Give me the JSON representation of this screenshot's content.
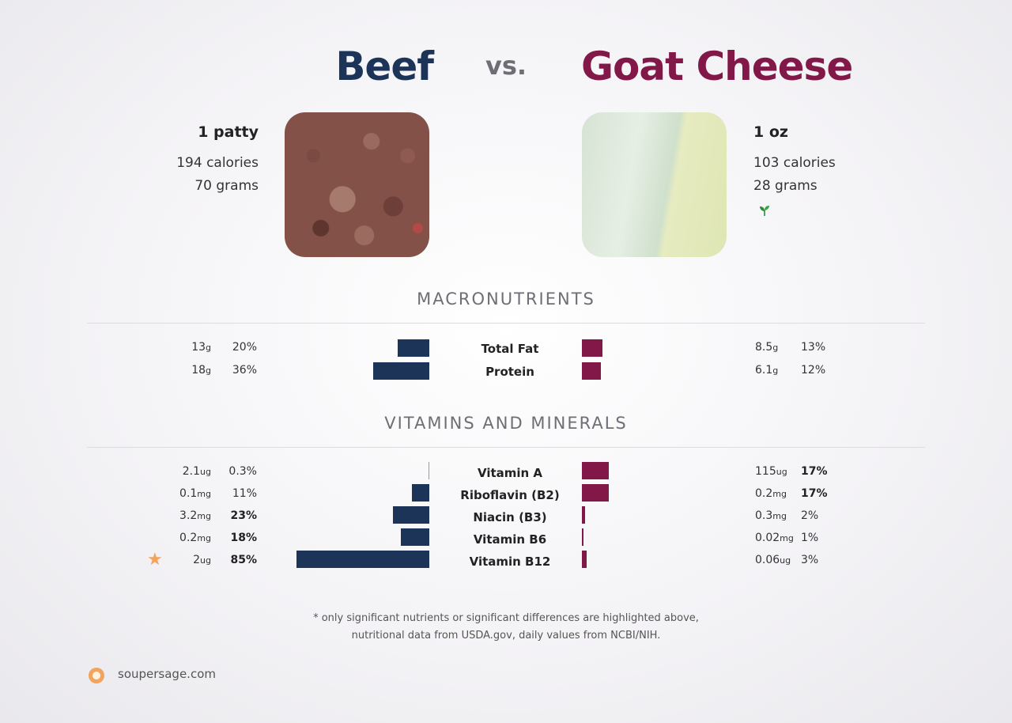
{
  "titles": {
    "left": "Beef",
    "vs": "vs.",
    "right": "Goat Cheese"
  },
  "left_food": {
    "serving": "1 patty",
    "calories": "194 calories",
    "grams": "70 grams",
    "image": "ground-beef-photo"
  },
  "right_food": {
    "serving": "1 oz",
    "calories": "103 calories",
    "grams": "28 grams",
    "image": "goat-cheese-photo",
    "badge_icon": "sprout-icon"
  },
  "sections": {
    "macros": "MACRONUTRIENTS",
    "vitamins": "VITAMINS AND MINERALS"
  },
  "colors": {
    "left": "#1c3458",
    "right": "#821848",
    "accent": "#f2a35e"
  },
  "chart_data": [
    {
      "type": "bar",
      "title": "MACRONUTRIENTS",
      "categories": [
        "Total Fat",
        "Protein"
      ],
      "series": [
        {
          "name": "Beef",
          "amounts": [
            "13",
            "18"
          ],
          "units": [
            "g",
            "g"
          ],
          "percent_labels": [
            "20%",
            "36%"
          ],
          "values": [
            20,
            36
          ],
          "highlight": [
            false,
            false
          ]
        },
        {
          "name": "Goat Cheese",
          "amounts": [
            "8.5",
            "6.1"
          ],
          "units": [
            "g",
            "g"
          ],
          "percent_labels": [
            "13%",
            "12%"
          ],
          "values": [
            13,
            12
          ],
          "highlight": [
            false,
            false
          ]
        }
      ]
    },
    {
      "type": "bar",
      "title": "VITAMINS AND MINERALS",
      "categories": [
        "Vitamin A",
        "Riboflavin (B2)",
        "Niacin (B3)",
        "Vitamin B6",
        "Vitamin B12"
      ],
      "series": [
        {
          "name": "Beef",
          "amounts": [
            "2.1",
            "0.1",
            "3.2",
            "0.2",
            "2"
          ],
          "units": [
            "ug",
            "mg",
            "mg",
            "mg",
            "ug"
          ],
          "percent_labels": [
            "0.3%",
            "11%",
            "23%",
            "18%",
            "85%"
          ],
          "values": [
            0.3,
            11,
            23,
            18,
            85
          ],
          "highlight": [
            false,
            false,
            true,
            true,
            true
          ]
        },
        {
          "name": "Goat Cheese",
          "amounts": [
            "115",
            "0.2",
            "0.3",
            "0.02",
            "0.06"
          ],
          "units": [
            "ug",
            "mg",
            "mg",
            "mg",
            "ug"
          ],
          "percent_labels": [
            "17%",
            "17%",
            "2%",
            "1%",
            "3%"
          ],
          "values": [
            17,
            17,
            2,
            1,
            3
          ],
          "highlight": [
            true,
            true,
            false,
            false,
            false
          ]
        }
      ],
      "starred_rows": [
        "Vitamin B12"
      ]
    }
  ],
  "footnote": {
    "line1": "* only significant nutrients or significant differences are highlighted above,",
    "line2": "nutritional data from USDA.gov, daily values from NCBI/NIH."
  },
  "brand": "soupersage.com"
}
